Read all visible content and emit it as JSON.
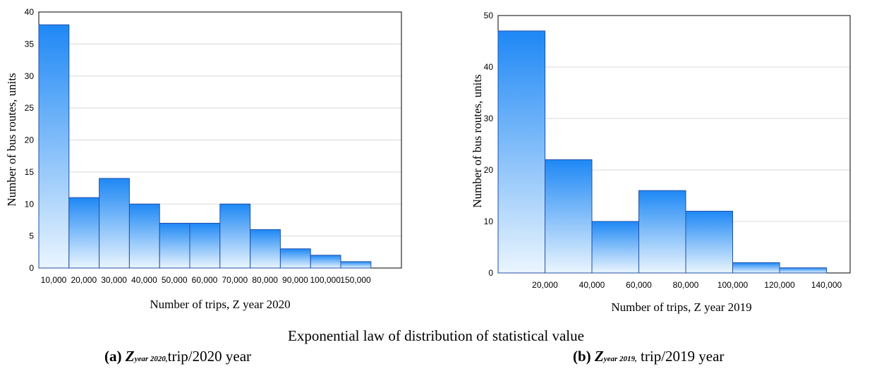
{
  "chart_data": [
    {
      "type": "bar",
      "categories": [
        "10,000",
        "20,000",
        "30,000",
        "40,000",
        "50,000",
        "60,000",
        "70,000",
        "80,000",
        "90,000",
        "100,000",
        "150,000"
      ],
      "values": [
        38,
        11,
        14,
        10,
        7,
        7,
        10,
        6,
        3,
        2,
        1
      ],
      "xlabel": "Number of trips, Z year 2020",
      "ylabel": "Number of bus routes, units",
      "ylim": [
        0,
        40
      ],
      "yticks": [
        "0",
        "5",
        "10",
        "15",
        "20",
        "25",
        "30",
        "35",
        "40"
      ],
      "grid": true,
      "bar_color_top": "#1e88f5",
      "bar_color_bottom": "#eaf5fe",
      "bar_edge_color": "#1f4fa8"
    },
    {
      "type": "bar",
      "categories": [
        "20,000",
        "40,000",
        "60,000",
        "80,000",
        "100,000",
        "120,000",
        "140,000"
      ],
      "values": [
        47,
        22,
        10,
        16,
        12,
        2,
        1
      ],
      "xlabel": "Number of trips, Z year 2019",
      "ylabel": "Number of bus routes, units",
      "ylim": [
        0,
        50
      ],
      "yticks": [
        "0",
        "10",
        "20",
        "30",
        "40",
        "50"
      ],
      "grid": true,
      "bar_color_top": "#1e88f5",
      "bar_color_bottom": "#eaf5fe",
      "bar_edge_color": "#1f4fa8"
    }
  ],
  "caption": {
    "main": "Exponential law of distribution of statistical value",
    "a": {
      "label": "(a)",
      "var": "Z",
      "sub": "year 2020,",
      "rest": "trip/2020 year"
    },
    "b": {
      "label": "(b)",
      "var": "Z",
      "sub": "year 2019,",
      "rest": " trip/2019 year"
    }
  }
}
